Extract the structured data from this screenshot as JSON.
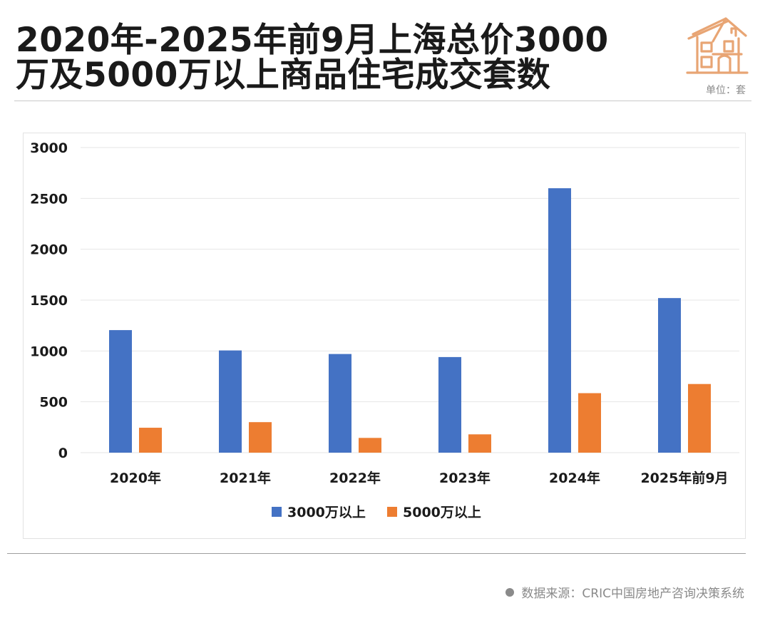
{
  "header": {
    "title_line1": "2020年-2025年前9月上海总价3000",
    "title_line2": "万及5000万以上商品住宅成交套数",
    "unit": "单位：套"
  },
  "footer": {
    "source": "数据来源：CRIC中国房地产咨询决策系统"
  },
  "colors": {
    "series_a": "#4472C4",
    "series_b": "#ED7D31",
    "icon": "#E8A574",
    "grid": "#e6e6e6"
  },
  "chart_data": {
    "type": "bar",
    "title": "2020年-2025年前9月上海总价3000万及5000万以上商品住宅成交套数",
    "xlabel": "",
    "ylabel": "",
    "ylim": [
      0,
      3000
    ],
    "yticks": [
      0,
      500,
      1000,
      1500,
      2000,
      2500,
      3000
    ],
    "grid": true,
    "legend_position": "bottom",
    "categories": [
      "2020年",
      "2021年",
      "2022年",
      "2023年",
      "2024年",
      "2025年前9月"
    ],
    "series": [
      {
        "name": "3000万以上",
        "values": [
          1205,
          1005,
          970,
          940,
          2600,
          1520
        ]
      },
      {
        "name": "5000万以上",
        "values": [
          245,
          300,
          145,
          180,
          585,
          675
        ]
      }
    ]
  }
}
